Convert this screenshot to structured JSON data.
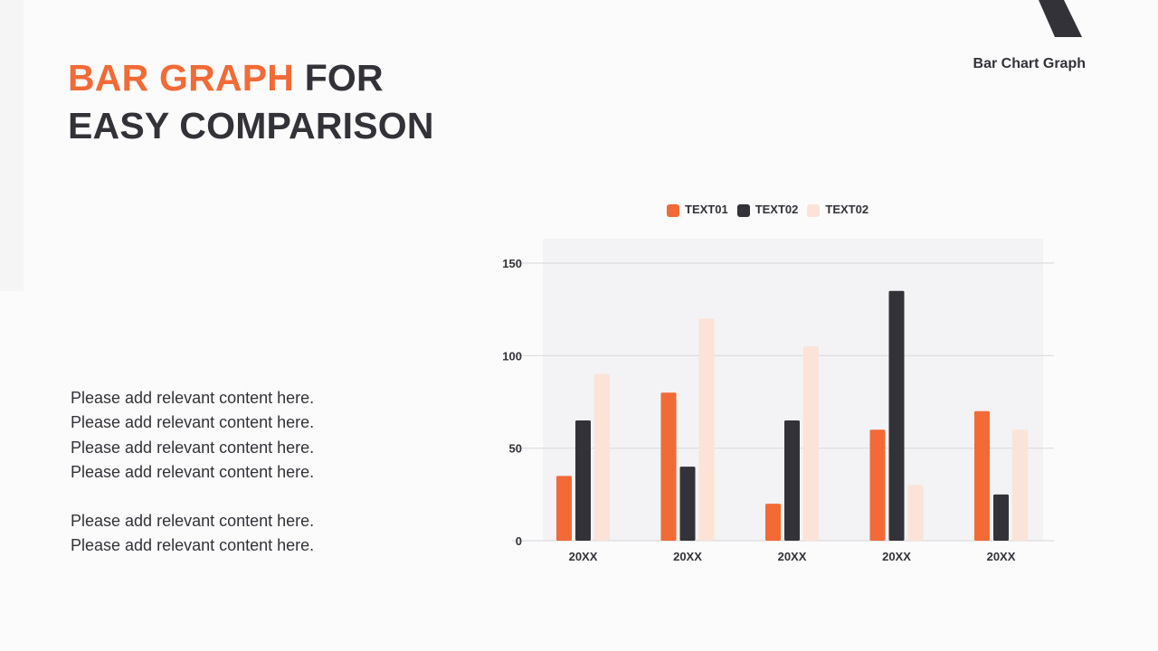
{
  "header": {
    "brand_label": "Bar Chart Graph",
    "title_accent": "BAR GRAPH",
    "title_rest_line1": "FOR",
    "title_line2": "EASY COMPARISON"
  },
  "body": {
    "paragraph1": [
      "Please add relevant content here.",
      "Please add relevant content here.",
      "Please add relevant content here.",
      "Please add relevant content here."
    ],
    "paragraph2": [
      "Please add relevant content here.",
      "Please add relevant content here."
    ]
  },
  "colors": {
    "accent": "#f26a36",
    "dark": "#333238",
    "light": "#fbe3d8",
    "plot_bg": "#f3f2f4",
    "grid": "#dcdbde"
  },
  "legend": [
    {
      "label": "TEXT01",
      "color": "#f26a36"
    },
    {
      "label": "TEXT02",
      "color": "#333238"
    },
    {
      "label": "TEXT02",
      "color": "#fbe3d8"
    }
  ],
  "chart_data": {
    "type": "bar",
    "title": "",
    "xlabel": "",
    "ylabel": "",
    "categories": [
      "20XX",
      "20XX",
      "20XX",
      "20XX",
      "20XX"
    ],
    "series": [
      {
        "name": "TEXT01",
        "color": "#f26a36",
        "values": [
          35,
          80,
          20,
          60,
          70
        ]
      },
      {
        "name": "TEXT02",
        "color": "#333238",
        "values": [
          65,
          40,
          65,
          135,
          25
        ]
      },
      {
        "name": "TEXT02",
        "color": "#fbe3d8",
        "values": [
          90,
          120,
          105,
          30,
          60
        ]
      }
    ],
    "ylim": [
      0,
      150
    ],
    "yticks": [
      0,
      50,
      100,
      150
    ],
    "grid": true,
    "legend_position": "top"
  }
}
